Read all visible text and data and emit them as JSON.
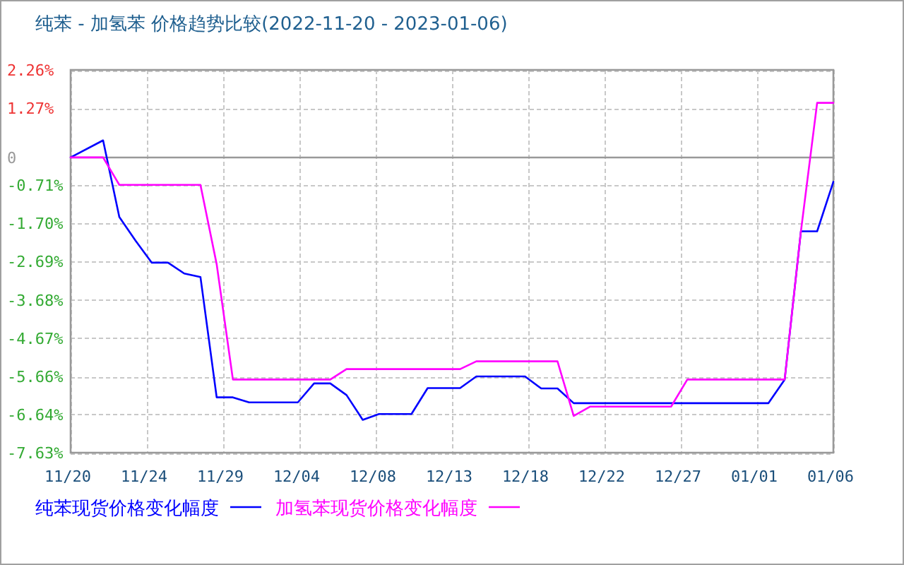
{
  "chart_data": {
    "type": "line",
    "title": "纯苯 - 加氢苯 价格趋势比较(2022-11-20 - 2023-01-06)",
    "xlim": [
      "2022-11-20",
      "2023-01-06"
    ],
    "xticks": [
      {
        "value": "2022-11-20",
        "label": "11/20"
      },
      {
        "value": "2022-11-24T16:48",
        "label": "11/24"
      },
      {
        "value": "2022-11-29T09:36",
        "label": "11/29"
      },
      {
        "value": "2022-12-04T02:24",
        "label": "12/04"
      },
      {
        "value": "2022-12-08T19:12",
        "label": "12/08"
      },
      {
        "value": "2022-12-13T12:00",
        "label": "12/13"
      },
      {
        "value": "2022-12-18T04:48",
        "label": "12/18"
      },
      {
        "value": "2022-12-22T21:36",
        "label": "12/22"
      },
      {
        "value": "2022-12-27T14:24",
        "label": "12/27"
      },
      {
        "value": "2023-01-01T07:12",
        "label": "01/01"
      },
      {
        "value": "2023-01-06",
        "label": "01/06"
      }
    ],
    "ylim": [
      -7.63,
      2.26
    ],
    "yticks": [
      {
        "value": 2.26,
        "label": "2.26%"
      },
      {
        "value": 1.27,
        "label": "1.27%"
      },
      0,
      {
        "value": -0.71,
        "label": "-0.71%"
      },
      {
        "value": -1.7,
        "label": "-1.70%"
      },
      {
        "value": -2.69,
        "label": "-2.69%"
      },
      {
        "value": -3.68,
        "label": "-3.68%"
      },
      {
        "value": -4.67,
        "label": "-4.67%"
      },
      {
        "value": -5.66,
        "label": "-5.66%"
      },
      {
        "value": -6.64,
        "label": "-6.64%"
      },
      {
        "value": -7.63,
        "label": "-7.63%"
      }
    ],
    "grid": true,
    "legend": "bottom",
    "ref_lines": [
      {
        "axis": "y",
        "value": 0,
        "color": "#999999",
        "line_style": "solid"
      }
    ],
    "series": [
      {
        "name": "纯苯现货价格变化幅度",
        "color": "#0000ff",
        "x": [
          "2022-11-20",
          "2022-11-22",
          "2022-11-23",
          "2022-11-24",
          "2022-11-25",
          "2022-11-26",
          "2022-11-27",
          "2022-11-28",
          "2022-11-29",
          "2022-11-30",
          "2022-12-01",
          "2022-12-04",
          "2022-12-05",
          "2022-12-06",
          "2022-12-07",
          "2022-12-08",
          "2022-12-09",
          "2022-12-11",
          "2022-12-12",
          "2022-12-14",
          "2022-12-15",
          "2022-12-18",
          "2022-12-19",
          "2022-12-20",
          "2022-12-21",
          "2023-01-02",
          "2023-01-03",
          "2023-01-04",
          "2023-01-05",
          "2023-01-06"
        ],
        "values": [
          0,
          0.44,
          -1.54,
          -2.15,
          -2.72,
          -2.72,
          -3.0,
          -3.09,
          -6.2,
          -6.2,
          -6.33,
          -6.33,
          -5.84,
          -5.84,
          -6.14,
          -6.78,
          -6.63,
          -6.63,
          -5.96,
          -5.96,
          -5.66,
          -5.66,
          -5.97,
          -5.97,
          -6.35,
          -6.35,
          -5.74,
          -1.91,
          -1.91,
          -0.63
        ]
      },
      {
        "name": "加氢苯现货价格变化幅度",
        "color": "#ff00ff",
        "x": [
          "2022-11-20",
          "2022-11-22",
          "2022-11-23",
          "2022-11-28",
          "2022-11-29",
          "2022-11-30",
          "2022-12-06",
          "2022-12-07",
          "2022-12-14",
          "2022-12-15",
          "2022-12-20",
          "2022-12-21",
          "2022-12-22",
          "2022-12-27",
          "2022-12-28",
          "2023-01-03",
          "2023-01-04",
          "2023-01-05",
          "2023-01-06"
        ],
        "values": [
          0,
          0,
          -0.71,
          -0.71,
          -2.76,
          -5.74,
          -5.74,
          -5.47,
          -5.47,
          -5.27,
          -5.27,
          -6.68,
          -6.44,
          -6.44,
          -5.74,
          -5.74,
          -1.91,
          1.41,
          1.41
        ]
      }
    ]
  }
}
